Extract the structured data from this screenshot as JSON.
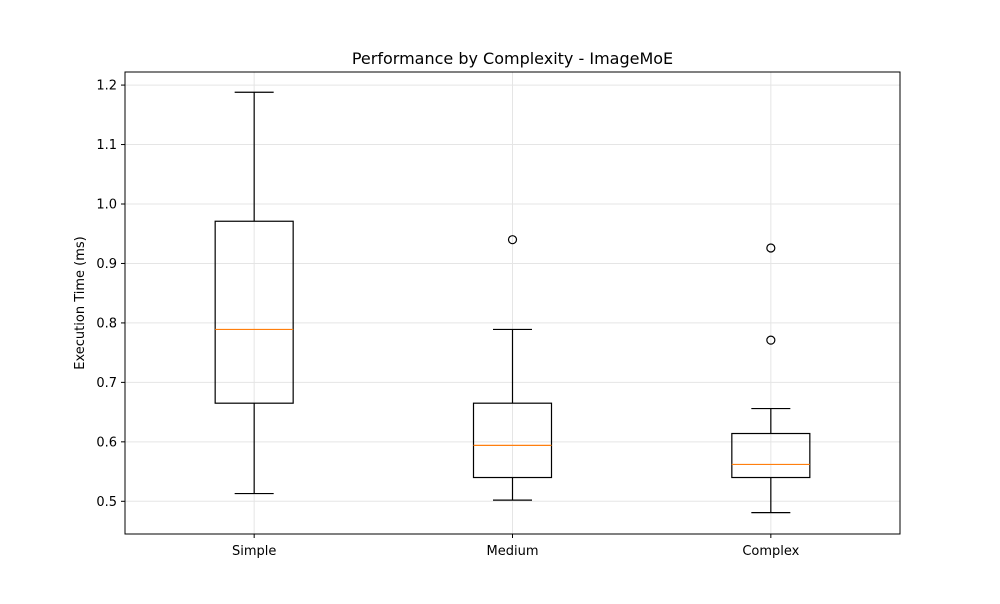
{
  "chart_data": {
    "type": "box",
    "title": "Performance by Complexity - ImageMoE",
    "xlabel": "",
    "ylabel": "Execution Time (ms)",
    "ylim": [
      0.445,
      1.222
    ],
    "yticks": [
      0.5,
      0.6,
      0.7,
      0.8,
      0.9,
      1.0,
      1.1,
      1.2
    ],
    "ytick_labels": [
      "0.5",
      "0.6",
      "0.7",
      "0.8",
      "0.9",
      "1.0",
      "1.1",
      "1.2"
    ],
    "grid": true,
    "categories": [
      "Simple",
      "Medium",
      "Complex"
    ],
    "boxes": [
      {
        "category": "Simple",
        "whisker_low": 0.513,
        "q1": 0.665,
        "median": 0.789,
        "q3": 0.971,
        "whisker_high": 1.188,
        "outliers": []
      },
      {
        "category": "Medium",
        "whisker_low": 0.502,
        "q1": 0.54,
        "median": 0.594,
        "q3": 0.665,
        "whisker_high": 0.789,
        "outliers": [
          0.94
        ]
      },
      {
        "category": "Complex",
        "whisker_low": 0.481,
        "q1": 0.54,
        "median": 0.562,
        "q3": 0.614,
        "whisker_high": 0.656,
        "outliers": [
          0.926,
          0.771
        ]
      }
    ],
    "colors": {
      "box": "#000000",
      "median": "#ff7f0e",
      "grid": "#e5e5e5"
    }
  }
}
